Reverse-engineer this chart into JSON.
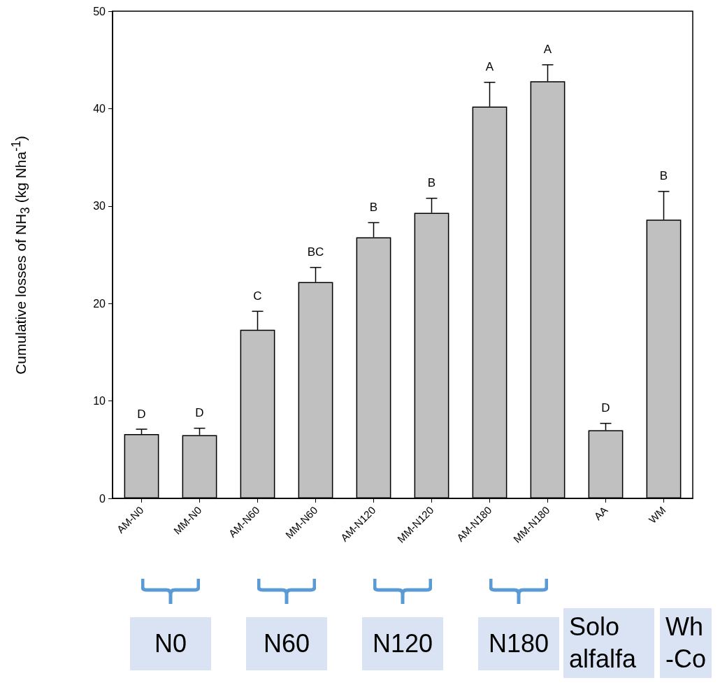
{
  "chart_data": {
    "type": "bar",
    "ylabel": "Cumulative losses of NH$_{3}$ (kg Nha$^{-1}$)",
    "categories": [
      "AM-N0",
      "MM-N0",
      "AM-N60",
      "MM-N60",
      "AM-N120",
      "MM-N120",
      "AM-N180",
      "MM-N180",
      "AA",
      "WM"
    ],
    "values": [
      6.6,
      6.5,
      17.3,
      22.2,
      26.8,
      29.3,
      40.2,
      42.8,
      7.0,
      28.6
    ],
    "errors": [
      0.5,
      0.7,
      1.9,
      1.5,
      1.5,
      1.5,
      2.5,
      1.7,
      0.7,
      2.9
    ],
    "color": "#c0c0c0",
    "ylim": [
      0,
      50
    ],
    "yticks": [
      0,
      10,
      20,
      30,
      40,
      50
    ],
    "grid": false,
    "annotations": [
      "D",
      "D",
      "C",
      "BC",
      "B",
      "B",
      "A",
      "A",
      "D",
      "B",
      "N0",
      "N60",
      "N120",
      "N180",
      "Solo\nalfalfa",
      "Wh\n-Co"
    ]
  }
}
